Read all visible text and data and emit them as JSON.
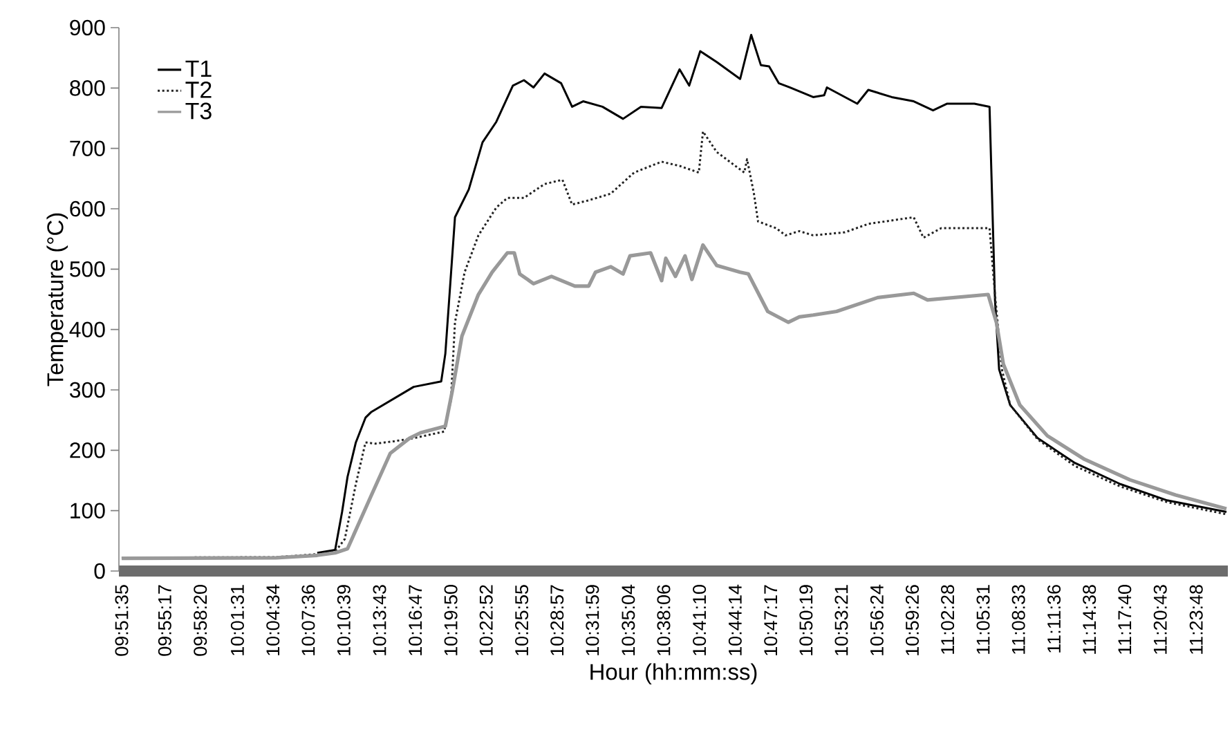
{
  "chart_data": {
    "type": "line",
    "xlabel": "Hour (hh:mm:ss)",
    "ylabel": "Temperature (°C)",
    "xlim": [
      9.8558,
      11.442
    ],
    "ylim": [
      0,
      900
    ],
    "yticks": [
      0,
      100,
      200,
      300,
      400,
      500,
      600,
      700,
      800,
      900
    ],
    "xticks": [
      {
        "value": 9.85972,
        "label": "09:51:35"
      },
      {
        "value": 9.92139,
        "label": "09:55:17"
      },
      {
        "value": 9.97222,
        "label": "09:58:20"
      },
      {
        "value": 10.02528,
        "label": "10:01:31"
      },
      {
        "value": 10.07611,
        "label": "10:04:34"
      },
      {
        "value": 10.12667,
        "label": "10:07:36"
      },
      {
        "value": 10.1775,
        "label": "10:10:39"
      },
      {
        "value": 10.22861,
        "label": "10:13:43"
      },
      {
        "value": 10.27972,
        "label": "10:16:47"
      },
      {
        "value": 10.33056,
        "label": "10:19:50"
      },
      {
        "value": 10.38111,
        "label": "10:22:52"
      },
      {
        "value": 10.43194,
        "label": "10:25:55"
      },
      {
        "value": 10.4825,
        "label": "10:28:57"
      },
      {
        "value": 10.53306,
        "label": "10:31:59"
      },
      {
        "value": 10.58444,
        "label": "10:35:04"
      },
      {
        "value": 10.635,
        "label": "10:38:06"
      },
      {
        "value": 10.68611,
        "label": "10:41:10"
      },
      {
        "value": 10.73722,
        "label": "10:44:14"
      },
      {
        "value": 10.78806,
        "label": "10:47:17"
      },
      {
        "value": 10.83861,
        "label": "10:50:19"
      },
      {
        "value": 10.88917,
        "label": "10:53:21"
      },
      {
        "value": 10.94,
        "label": "10:56:24"
      },
      {
        "value": 10.99056,
        "label": "10:59:26"
      },
      {
        "value": 11.04111,
        "label": "11:02:28"
      },
      {
        "value": 11.09194,
        "label": "11:05:31"
      },
      {
        "value": 11.1425,
        "label": "11:08:33"
      },
      {
        "value": 11.19333,
        "label": "11:11:36"
      },
      {
        "value": 11.24389,
        "label": "11:14:38"
      },
      {
        "value": 11.29444,
        "label": "11:17:40"
      },
      {
        "value": 11.34528,
        "label": "11:20:43"
      },
      {
        "value": 11.39667,
        "label": "11:23:48"
      }
    ],
    "grid": false,
    "legend": "top left",
    "marker": "none",
    "series": [
      {
        "name": "T1",
        "color": "#000000",
        "line_style": "solid",
        "x": [
          10.1395,
          10.1651,
          10.175,
          10.1828,
          10.1947,
          10.2085,
          10.2163,
          10.2774,
          10.3168,
          10.3227,
          10.3365,
          10.3562,
          10.3759,
          10.3956,
          10.4193,
          10.4351,
          10.4488,
          10.4646,
          10.4883,
          10.504,
          10.5198,
          10.5474,
          10.5769,
          10.6025,
          10.6321,
          10.6577,
          10.6715,
          10.6873,
          10.7109,
          10.7444,
          10.7602,
          10.774,
          10.7858,
          10.7996,
          10.8153,
          10.8488,
          10.8646,
          10.8685,
          10.9119,
          10.9277,
          10.9612,
          10.9927,
          11.0203,
          11.04,
          11.0794,
          11.1011,
          11.1089,
          11.1148,
          11.1306,
          11.17,
          11.2232,
          11.2882,
          11.3552,
          11.44
        ],
        "values": [
          30,
          35,
          98,
          156,
          213,
          254,
          263,
          305,
          314,
          360,
          586,
          632,
          710,
          744,
          804,
          813,
          801,
          824,
          808,
          769,
          778,
          769,
          749,
          769,
          767,
          831,
          804,
          861,
          843,
          815,
          888,
          838,
          836,
          808,
          801,
          785,
          788,
          801,
          774,
          797,
          785,
          778,
          763,
          774,
          774,
          769,
          449,
          334,
          275,
          220,
          179,
          144,
          117,
          98
        ]
      },
      {
        "name": "T2",
        "color": "#222222",
        "line_style": "dotted",
        "x": [
          9.8597,
          10.0804,
          10.1395,
          10.1651,
          10.1789,
          10.1947,
          10.2085,
          10.2223,
          10.2498,
          10.2774,
          10.3208,
          10.3306,
          10.3365,
          10.3503,
          10.37,
          10.3956,
          10.4114,
          10.4351,
          10.4646,
          10.4902,
          10.504,
          10.5277,
          10.5592,
          10.5927,
          10.6321,
          10.6577,
          10.6853,
          10.6912,
          10.7109,
          10.7503,
          10.7543,
          10.7641,
          10.77,
          10.7956,
          10.8094,
          10.8291,
          10.8488,
          10.8942,
          10.9277,
          10.9927,
          11.0065,
          11.0321,
          11.1011,
          11.1089,
          11.1188,
          11.1306,
          11.17,
          11.2232,
          11.2882,
          11.3552,
          11.44
        ],
        "values": [
          22,
          23,
          28,
          32,
          53,
          144,
          213,
          211,
          215,
          220,
          231,
          282,
          412,
          495,
          556,
          602,
          618,
          618,
          641,
          648,
          607,
          614,
          625,
          660,
          678,
          671,
          660,
          728,
          694,
          660,
          682,
          625,
          579,
          568,
          556,
          563,
          556,
          561,
          575,
          586,
          552,
          568,
          568,
          458,
          334,
          275,
          218,
          174,
          140,
          114,
          94
        ]
      },
      {
        "name": "T3",
        "color": "#999999",
        "line_style": "solid",
        "x": [
          9.8597,
          10.0804,
          10.1395,
          10.1651,
          10.1828,
          10.2163,
          10.2439,
          10.2715,
          10.2873,
          10.3227,
          10.3326,
          10.3464,
          10.37,
          10.3897,
          10.4114,
          10.4213,
          10.4291,
          10.4488,
          10.4745,
          10.508,
          10.5277,
          10.5375,
          10.5592,
          10.5769,
          10.5868,
          10.6163,
          10.6321,
          10.638,
          10.6518,
          10.6656,
          10.6754,
          10.6912,
          10.7109,
          10.7444,
          10.7562,
          10.7838,
          10.8134,
          10.8291,
          10.8488,
          10.8823,
          10.9414,
          10.9927,
          11.0124,
          11.0991,
          11.1109,
          11.1208,
          11.1444,
          11.1838,
          11.237,
          11.302,
          11.3671,
          11.44
        ],
        "values": [
          21,
          22,
          26,
          30,
          37,
          124,
          195,
          220,
          229,
          240,
          298,
          389,
          458,
          495,
          527,
          527,
          492,
          476,
          488,
          472,
          472,
          495,
          504,
          492,
          522,
          527,
          481,
          518,
          488,
          522,
          483,
          540,
          506,
          495,
          492,
          430,
          412,
          421,
          424,
          430,
          453,
          460,
          449,
          458,
          412,
          343,
          275,
          224,
          185,
          151,
          126,
          103
        ]
      }
    ]
  }
}
